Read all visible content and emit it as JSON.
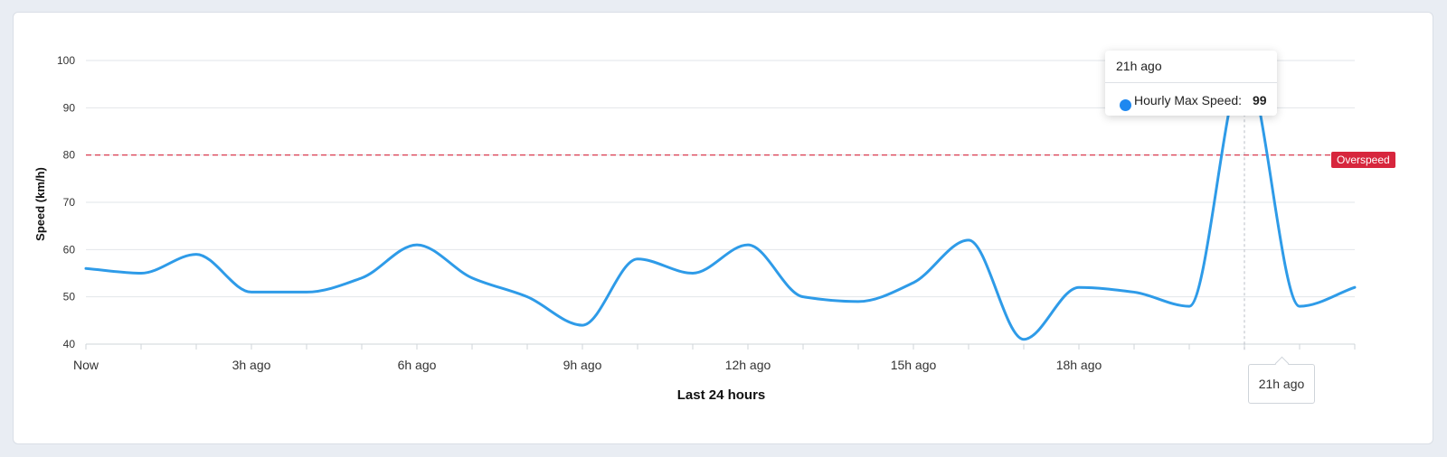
{
  "chart_data": {
    "type": "line",
    "title": "",
    "xlabel": "Last 24 hours",
    "ylabel": "Speed (km/h)",
    "ylim": [
      40,
      100
    ],
    "yticks": [
      40,
      50,
      60,
      70,
      80,
      90,
      100
    ],
    "x": [
      0,
      1,
      2,
      3,
      4,
      5,
      6,
      7,
      8,
      9,
      10,
      11,
      12,
      13,
      14,
      15,
      16,
      17,
      18,
      19,
      20,
      21,
      22,
      23
    ],
    "x_tick_labels": [
      {
        "x": 0,
        "label": "Now"
      },
      {
        "x": 3,
        "label": "3h ago"
      },
      {
        "x": 6,
        "label": "6h ago"
      },
      {
        "x": 9,
        "label": "9h ago"
      },
      {
        "x": 12,
        "label": "12h ago"
      },
      {
        "x": 15,
        "label": "15h ago"
      },
      {
        "x": 18,
        "label": "18h ago"
      },
      {
        "x": 21,
        "label": "21h ago"
      }
    ],
    "series": [
      {
        "name": "Hourly Max Speed",
        "color": "#2e9be8",
        "values": [
          56,
          55,
          59,
          51,
          51,
          54,
          61,
          54,
          50,
          44,
          58,
          55,
          61,
          50,
          49,
          53,
          62,
          41,
          52,
          51,
          48,
          99,
          48,
          52
        ]
      }
    ],
    "threshold": {
      "value": 80,
      "label": "Overspeed",
      "color": "#d7263d"
    },
    "grid": true
  },
  "tooltip": {
    "title": "21h ago",
    "series_label": "Hourly Max Speed:",
    "value": "99",
    "dot_color": "#1e88f0"
  },
  "x_flag_label": "21h ago"
}
